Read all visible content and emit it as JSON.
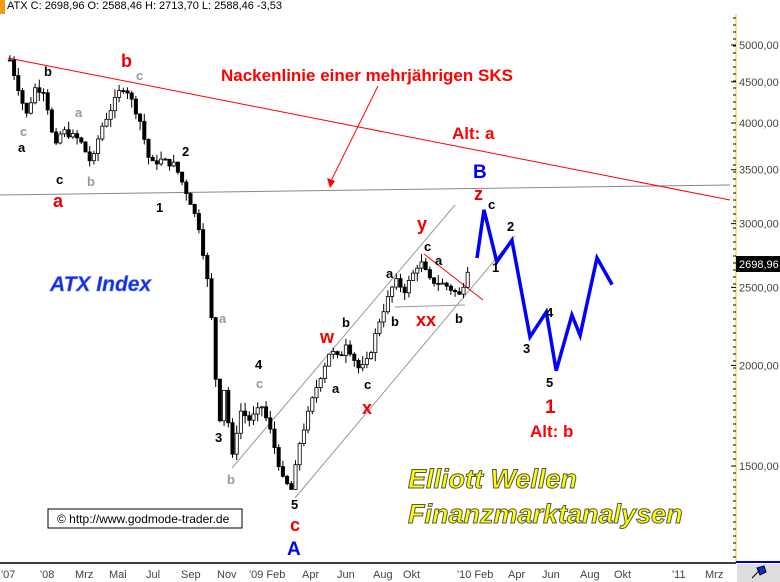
{
  "header": {
    "text": "ATX C: 2698,96 O: 2588,46 H: 2713,70 L: 2588,46 -3,53"
  },
  "colors": {
    "up": "#ffffff",
    "down": "#000000",
    "neckline": "#ff0000",
    "projection": "#0000ff",
    "last_price_bg": "#000000",
    "axis_border": "#f5c400"
  },
  "chart_data": {
    "type": "candlestick",
    "title": "ATX Index",
    "y_scale": "log",
    "ylim": [
      1300,
      5400
    ],
    "yticks": [
      "5000,00",
      "4500,00",
      "4000,00",
      "3500,00",
      "3000,00",
      "2500,00",
      "2000,00",
      "1500,00"
    ],
    "ytick_values": [
      5000,
      4500,
      4000,
      3500,
      3000,
      2500,
      2000,
      1500
    ],
    "last_price": "2698,96",
    "xticks": [
      "'07",
      "'08",
      "Mrz",
      "Mai",
      "Jul",
      "Sep",
      "Nov",
      "'09 Feb",
      "Apr",
      "Jun",
      "Aug",
      "Okt",
      "'10 Feb",
      "Apr",
      "Jun",
      "Aug",
      "Okt",
      "'11",
      "Mrz"
    ],
    "price_swings": [
      [
        "2007-10-31",
        4790
      ],
      [
        "2007-11-21",
        4270
      ],
      [
        "2007-11-26",
        4040
      ],
      [
        "2007-12-13",
        4420
      ],
      [
        "2007-12-30",
        4390
      ],
      [
        "2008-01-16",
        3700
      ],
      [
        "2008-01-28",
        3920
      ],
      [
        "2008-02-28",
        3810
      ],
      [
        "2008-03-20",
        3550
      ],
      [
        "2008-04-03",
        3920
      ],
      [
        "2008-05-07",
        4390
      ],
      [
        "2008-05-16",
        4450
      ],
      [
        "2008-06-10",
        4040
      ],
      [
        "2008-06-28",
        3550
      ],
      [
        "2008-07-15",
        3600
      ],
      [
        "2008-08-09",
        3550
      ],
      [
        "2008-09-04",
        3210
      ],
      [
        "2008-09-21",
        2950
      ],
      [
        "2008-10-09",
        2410
      ],
      [
        "2008-10-17",
        1970
      ],
      [
        "2008-10-26",
        1710
      ],
      [
        "2008-11-03",
        1900
      ],
      [
        "2008-11-15",
        1520
      ],
      [
        "2008-11-29",
        1760
      ],
      [
        "2008-12-16",
        1710
      ],
      [
        "2009-01-06",
        1780
      ],
      [
        "2009-01-20",
        1660
      ],
      [
        "2009-02-11",
        1440
      ],
      [
        "2009-02-26",
        1400
      ],
      [
        "2009-03-12",
        1610
      ],
      [
        "2009-04-07",
        1860
      ],
      [
        "2009-05-03",
        2090
      ],
      [
        "2009-05-20",
        2030
      ],
      [
        "2009-05-28",
        2150
      ],
      [
        "2009-06-23",
        1970
      ],
      [
        "2009-07-07",
        2030
      ],
      [
        "2009-07-27",
        2280
      ],
      [
        "2009-08-22",
        2550
      ],
      [
        "2009-09-08",
        2480
      ],
      [
        "2009-10-04",
        2700
      ],
      [
        "2009-10-21",
        2550
      ],
      [
        "2009-11-16",
        2520
      ],
      [
        "2009-12-12",
        2440
      ],
      [
        "2009-12-29",
        2699
      ]
    ],
    "projection": [
      [
        "2010-01-10",
        2719
      ],
      [
        "2010-01-22",
        3120
      ],
      [
        "2010-02-13",
        2690
      ],
      [
        "2010-03-11",
        2860
      ],
      [
        "2010-04-11",
        2170
      ],
      [
        "2010-05-09",
        2330
      ],
      [
        "2010-05-26",
        1970
      ],
      [
        "2010-06-22",
        2310
      ],
      [
        "2010-07-06",
        2180
      ],
      [
        "2010-08-04",
        2720
      ],
      [
        "2010-08-30",
        2520
      ]
    ],
    "annotations": {
      "neckline": "Nackenlinie einer mehrjährigen SKS",
      "alt_a": "Alt: a",
      "alt_b": "Alt: b",
      "index_name": "ATX Index",
      "brand1": "Elliott Wellen",
      "brand2": "Finanzmarktanalysen",
      "copyright": "© http://www.godmode-trader.de"
    },
    "wave_labels": [
      "b",
      "c",
      "a",
      "c",
      "a",
      "a",
      "b",
      "b",
      "c",
      "2",
      "1",
      "a",
      "4",
      "c",
      "3",
      "b",
      "w",
      "b",
      "a",
      "c",
      "x",
      "5",
      "c",
      "A",
      "a",
      "b",
      "y",
      "c",
      "xx",
      "a",
      "b",
      "B",
      "z",
      "c",
      "1",
      "2",
      "3",
      "4",
      "5",
      "1"
    ]
  }
}
